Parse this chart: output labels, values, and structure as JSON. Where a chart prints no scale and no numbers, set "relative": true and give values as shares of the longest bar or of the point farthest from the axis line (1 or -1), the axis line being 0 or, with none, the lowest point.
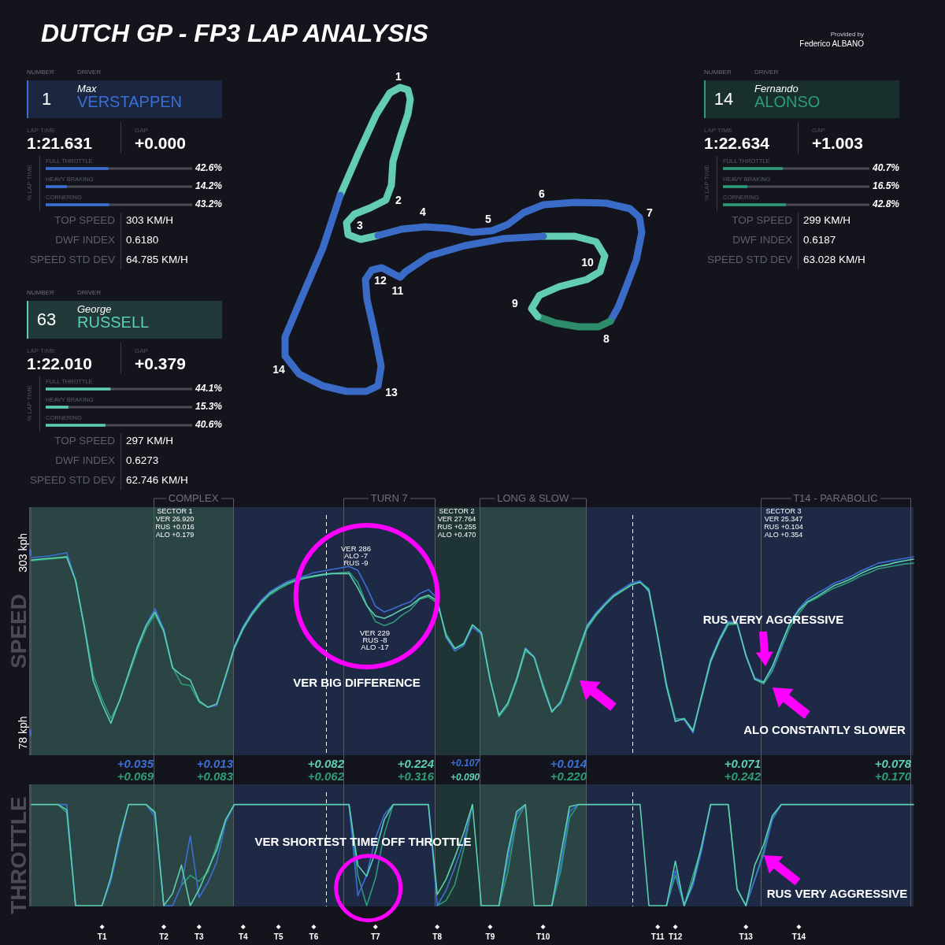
{
  "chart_data": [
    {
      "type": "other",
      "title": "DUTCH GP - FP3 LAP ANALYSIS",
      "annotations": [
        "Provided by",
        "Federico ALBANO"
      ]
    },
    {
      "type": "bar",
      "orientation": "horizontal",
      "categories": [
        "FULL THROTTLE",
        "HEAVY BRAKING",
        "CORNERING"
      ],
      "values": [
        42.6,
        14.2,
        43.2
      ],
      "value_labels": [
        "42.6%",
        "14.2%",
        "43.2%"
      ],
      "color": "#3b6fd4",
      "tick_labels": "y",
      "ylabel": "% LAP TIME",
      "annotations": [
        "NUMBER",
        "DRIVER",
        "1",
        "Max",
        "VERSTAPPEN",
        "LAP TIME",
        "1:21.631",
        "GAP",
        "+0.000",
        "TOP SPEED",
        "303 KM/H",
        "DWF INDEX",
        "0.6180",
        "SPEED STD DEV",
        "64.785 KM/H"
      ]
    },
    {
      "type": "other",
      "annotations": [
        "1",
        "2",
        "3",
        "4",
        "5",
        "6",
        "7",
        "8",
        "9",
        "10",
        "11",
        "12",
        "13",
        "14"
      ]
    },
    {
      "type": "bar",
      "orientation": "horizontal",
      "categories": [
        "FULL THROTTLE",
        "HEAVY BRAKING",
        "CORNERING"
      ],
      "values": [
        40.7,
        16.5,
        42.8
      ],
      "value_labels": [
        "40.7%",
        "16.5%",
        "42.8%"
      ],
      "color": "#2e9b78",
      "tick_labels": "y",
      "ylabel": "% LAP TIME",
      "annotations": [
        "NUMBER",
        "DRIVER",
        "14",
        "Fernando",
        "ALONSO",
        "LAP TIME",
        "1:22.634",
        "GAP",
        "+1.003",
        "TOP SPEED",
        "299 KM/H",
        "DWF INDEX",
        "0.6187",
        "SPEED STD DEV",
        "63.028 KM/H"
      ]
    },
    {
      "type": "bar",
      "orientation": "horizontal",
      "categories": [
        "FULL THROTTLE",
        "HEAVY BRAKING",
        "CORNERING"
      ],
      "values": [
        44.1,
        15.3,
        40.6
      ],
      "value_labels": [
        "44.1%",
        "15.3%",
        "40.6%"
      ],
      "color": "#5ccfb0",
      "tick_labels": "y",
      "ylabel": "% LAP TIME",
      "annotations": [
        "NUMBER",
        "DRIVER",
        "63",
        "George",
        "RUSSELL",
        "LAP TIME",
        "1:22.010",
        "GAP",
        "+0.379",
        "TOP SPEED",
        "297 KM/H",
        "DWF INDEX",
        "0.6273",
        "SPEED STD DEV",
        "62.746 KM/H"
      ]
    },
    {
      "type": "line",
      "ylabel": "SPEED",
      "categories": [
        null,
        null,
        null,
        null,
        null,
        null,
        null,
        null,
        null,
        null,
        null,
        null,
        null,
        null,
        null,
        null,
        null,
        null,
        null,
        null,
        null,
        null,
        null,
        null,
        null,
        null,
        null,
        null,
        null,
        null,
        null,
        null,
        null,
        null,
        null,
        null,
        null,
        null,
        null,
        null,
        null,
        null,
        null,
        null,
        null,
        null,
        null,
        null,
        null,
        null,
        null,
        null,
        null,
        null,
        null,
        null,
        null,
        null,
        null,
        null,
        null,
        null,
        null,
        null,
        null,
        null,
        null,
        null,
        null,
        null,
        null,
        null,
        null,
        null,
        null,
        null,
        null,
        null,
        null,
        null,
        null,
        null,
        null,
        null,
        null,
        null,
        null,
        null,
        null,
        null,
        null,
        null,
        null,
        null,
        null,
        null,
        null,
        null,
        null,
        null,
        null
      ],
      "series": [
        {
          "color": "#5ccfb0",
          "values": [
            294,
            295,
            296,
            297,
            298,
            268,
            209,
            143,
            114,
            90,
            119,
            152,
            185,
            212,
            229,
            205,
            159,
            150,
            144,
            118,
            110,
            114,
            149,
            185,
            209,
            227,
            241,
            252,
            259,
            265,
            269,
            272,
            274,
            276,
            277,
            277,
            277,
            259,
            237,
            224,
            221,
            226,
            232,
            237,
            246,
            250,
            243,
            199,
            183,
            189,
            213,
            203,
            144,
            100,
            115,
            145,
            183,
            172,
            135,
            104,
            117,
            147,
            180,
            211,
            226,
            238,
            249,
            256,
            263,
            266,
            256,
            198,
            136,
            92,
            96,
            80,
            125,
            168,
            194,
            215,
            215,
            174,
            145,
            141,
            161,
            189,
            215,
            231,
            242,
            248,
            255,
            262,
            266,
            271,
            277,
            282,
            286,
            288,
            291,
            293,
            295
          ]
        },
        {
          "color": "#3b6fd4",
          "values": [
            297,
            298,
            299,
            301,
            303,
            269,
            210,
            143,
            null,
            null,
            null,
            152,
            186,
            213,
            233,
            208,
            159,
            null,
            null,
            null,
            110,
            112,
            147,
            186,
            211,
            229,
            243,
            254,
            261,
            267,
            271,
            274,
            278,
            280,
            282,
            284,
            286,
            281,
            260,
            236,
            229,
            233,
            238,
            242,
            252,
            257,
            246,
            197,
            180,
            187,
            210,
            201,
            144,
            101,
            115,
            146,
            184,
            173,
            136,
            105,
            115,
            146,
            181,
            213,
            228,
            240,
            251,
            258,
            265,
            268,
            254,
            197,
            135,
            94,
            94,
            78,
            125,
            170,
            196,
            217,
            216,
            175,
            147,
            142,
            158,
            186,
            216,
            233,
            245,
            252,
            258,
            265,
            269,
            274,
            280,
            285,
            290,
            292,
            294,
            296,
            298
          ]
        },
        {
          "color": "#2e9b78",
          "values": [
            293,
            294,
            295,
            296,
            297,
            269,
            212,
            150,
            120,
            96,
            118,
            149,
            181,
            208,
            226,
            204,
            160,
            139,
            137,
            116,
            110,
            null,
            147,
            183,
            207,
            225,
            239,
            250,
            257,
            263,
            268,
            271,
            273,
            275,
            277,
            278,
            279,
            266,
            238,
            217,
            212,
            216,
            225,
            232,
            245,
            248,
            240,
            202,
            184,
            190,
            213,
            204,
            145,
            98,
            112,
            142,
            180,
            173,
            139,
            106,
            114,
            142,
            176,
            208,
            224,
            237,
            248,
            255,
            262,
            267,
            258,
            200,
            139,
            96,
            95,
            82,
            122,
            166,
            192,
            213,
            214,
            176,
            145,
            139,
            155,
            183,
            210,
            227,
            241,
            246,
            253,
            259,
            263,
            268,
            274,
            278,
            283,
            285,
            287,
            289,
            290
          ]
        }
      ],
      "ylim": [
        50,
        360
      ],
      "yticks": [
        {
          "value": 303,
          "label": "303 kph"
        },
        {
          "value": 78,
          "label": "78 kph"
        }
      ],
      "tick_labels": "y",
      "annotations": [
        "SECTOR 1\nVER 26.920\nRUS +0.016\nALO +0.179",
        "SECTOR 2\nVER 27.764\nRUS +0.255\nALO +0.470",
        "SECTOR 3\nVER 25.347\nRUS +0.104\nALO +0.354",
        {
          "text": "VER 286\nALO -7\nRUS -9",
          "y": 286
        },
        {
          "text": "VER 229\nRUS -8\nALO -17",
          "y": 229
        },
        "VER BIG DIFFERENCE",
        "RUS VERY AGGRESSIVE",
        "ALO CONSTANTLY SLOWER",
        "+0.035\n+0.069",
        "+0.013\n+0.083",
        "+0.082\n+0.062",
        "+0.224\n+0.316",
        "+0.107\n+0.090",
        "+0.014\n+0.220",
        "+0.071\n+0.242",
        "+0.078\n+0.170",
        "COMPLEX",
        "TURN 7",
        "LONG & SLOW",
        "T14 - PARABOLIC"
      ]
    },
    {
      "type": "line",
      "ylabel": "THROTTLE",
      "relative": true,
      "categories": [
        null,
        null,
        null,
        null,
        null,
        null,
        null,
        null,
        "T1",
        null,
        null,
        null,
        null,
        null,
        null,
        "T2",
        null,
        null,
        null,
        "T3",
        null,
        null,
        null,
        null,
        "T4",
        null,
        null,
        null,
        "T5",
        null,
        null,
        null,
        "T6",
        null,
        null,
        null,
        null,
        null,
        null,
        "T7",
        null,
        null,
        null,
        null,
        null,
        null,
        "T8",
        null,
        null,
        null,
        null,
        null,
        "T9",
        null,
        null,
        null,
        null,
        null,
        "T10",
        null,
        null,
        null,
        null,
        null,
        null,
        null,
        null,
        null,
        null,
        null,
        null,
        "T11",
        null,
        "T12",
        null,
        null,
        null,
        null,
        null,
        null,
        null,
        "T13",
        null,
        null,
        null,
        null,
        null,
        "T14",
        null,
        null,
        null,
        null,
        null,
        null,
        null,
        null,
        null,
        null,
        null,
        null,
        null
      ],
      "series": [
        {
          "color": "#5ccfb0",
          "values": [
            1,
            1,
            1,
            1,
            0.95,
            0,
            0,
            0,
            0,
            0.28,
            0.68,
            1,
            1,
            1,
            0.92,
            0,
            0.12,
            0.4,
            0,
            0.16,
            0.36,
            0.55,
            0.85,
            1,
            1,
            1,
            1,
            1,
            1,
            1,
            1,
            1,
            1,
            1,
            1,
            1,
            1,
            0.4,
            0.29,
            0.53,
            0.85,
            1,
            1,
            1,
            1,
            1,
            0.11,
            0.26,
            0.48,
            0.72,
            1,
            0,
            0,
            0,
            0.53,
            0.93,
            1,
            0,
            0,
            0,
            0.5,
            0.98,
            1,
            1,
            1,
            1,
            1,
            1,
            1,
            1,
            0,
            0,
            0,
            0.44,
            0,
            0.24,
            0.6,
            1,
            1,
            1,
            0.16,
            0,
            0.4,
            0.6,
            0.89,
            1,
            1,
            1,
            1,
            1,
            1,
            1,
            1,
            1,
            1,
            1,
            1,
            1,
            1,
            1,
            1
          ]
        },
        {
          "color": "#3b6fd4",
          "values": [
            null,
            null,
            null,
            1,
            1,
            0,
            null,
            null,
            0,
            0.24,
            0.63,
            1,
            null,
            1,
            0.88,
            0,
            0,
            0.2,
            0.69,
            0.08,
            0.23,
            0.43,
            0.82,
            1,
            null,
            null,
            null,
            null,
            null,
            null,
            null,
            null,
            null,
            null,
            null,
            null,
            1,
            0.1,
            0.3,
            0.67,
            0.9,
            1,
            null,
            null,
            null,
            1,
            0,
            0.15,
            0.38,
            0.63,
            1,
            null,
            null,
            0,
            0.45,
            0.9,
            1,
            null,
            null,
            0,
            0.4,
            0.93,
            1,
            null,
            null,
            null,
            null,
            null,
            null,
            null,
            null,
            null,
            0,
            0.35,
            0,
            0.2,
            0.55,
            1,
            null,
            null,
            null,
            0,
            0.26,
            0.5,
            0.85,
            1,
            null,
            null,
            null,
            null,
            null,
            null,
            null,
            null,
            null,
            null,
            null,
            null,
            null,
            null,
            null
          ]
        },
        {
          "color": "#2e9b78",
          "values": [
            null,
            null,
            null,
            1,
            0.92,
            0,
            null,
            null,
            null,
            null,
            null,
            null,
            null,
            1,
            0.93,
            0,
            null,
            0.2,
            0.3,
            0.24,
            0.33,
            0.6,
            0.84,
            1,
            null,
            null,
            null,
            null,
            null,
            null,
            null,
            null,
            null,
            null,
            null,
            null,
            1,
            0.3,
            0,
            0.27,
            0.71,
            1,
            null,
            null,
            null,
            null,
            0,
            0.05,
            0.21,
            0.56,
            1,
            null,
            null,
            0,
            0.33,
            0.84,
            1,
            null,
            null,
            0,
            0.34,
            0.87,
            1,
            null,
            null,
            null,
            null,
            null,
            null,
            null,
            null,
            null,
            0,
            0.3,
            0,
            0.3,
            0.58,
            1,
            null,
            1,
            0.17,
            0,
            0.26,
            0.54,
            0.86,
            1,
            null,
            null,
            null,
            null,
            null,
            null,
            null,
            null,
            null,
            null,
            null,
            null,
            null,
            null,
            null
          ]
        }
      ],
      "tick_labels": "x",
      "annotations": [
        "VER SHORTEST TIME OFF THROTTLE",
        "RUS VERY AGGRESSIVE"
      ]
    }
  ]
}
